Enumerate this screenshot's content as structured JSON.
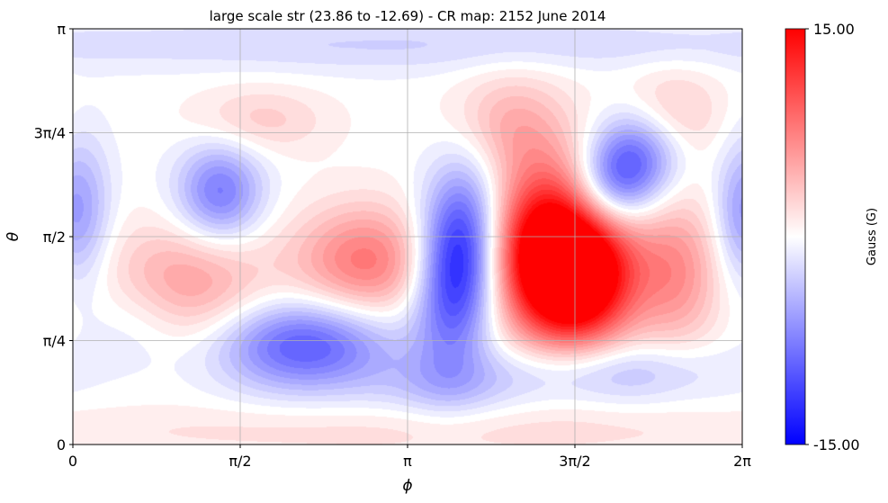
{
  "chart_data": {
    "type": "heatmap",
    "title": "large scale str (23.86 to -12.69) - CR map: 2152 June 2014",
    "xlabel": "ϕ",
    "ylabel": "θ",
    "xlim": [
      0,
      6.2832
    ],
    "ylim": [
      0,
      3.1416
    ],
    "x_ticks": [
      {
        "value": 0,
        "label": "0"
      },
      {
        "value": 1.5708,
        "label": "π/2"
      },
      {
        "value": 3.1416,
        "label": "π"
      },
      {
        "value": 4.7124,
        "label": "3π/2"
      },
      {
        "value": 6.2832,
        "label": "2π"
      }
    ],
    "y_ticks": [
      {
        "value": 0,
        "label": "0"
      },
      {
        "value": 0.7854,
        "label": "π/4"
      },
      {
        "value": 1.5708,
        "label": "π/2"
      },
      {
        "value": 2.3562,
        "label": "3π/4"
      },
      {
        "value": 3.1416,
        "label": "π"
      }
    ],
    "grid": true,
    "colormap": "bwr",
    "colorbar": {
      "label": "Gauss (G)",
      "vmin": -15.0,
      "vmax": 15.0,
      "max_label": "15.00",
      "min_label": "-15.00",
      "low_color": "#0000ff",
      "mid_color": "#ffffff",
      "high_color": "#ff0000"
    },
    "features": [
      {
        "phi": 4.6,
        "theta": 1.44,
        "amplitude": 24,
        "sx": 0.42,
        "sy": 0.44,
        "tilt": -0.55
      },
      {
        "phi": 4.75,
        "theta": 1.2,
        "amplitude": 6,
        "sx": 0.35,
        "sy": 0.3,
        "tilt": 0
      },
      {
        "phi": 3.62,
        "theta": 1.38,
        "amplitude": -15,
        "sx": 0.26,
        "sy": 0.48,
        "tilt": 0.12
      },
      {
        "phi": 5.15,
        "theta": 2.05,
        "amplitude": -13,
        "sx": 0.38,
        "sy": 0.26,
        "tilt": -0.65
      },
      {
        "phi": 2.17,
        "theta": 0.75,
        "amplitude": -10,
        "sx": 0.58,
        "sy": 0.24,
        "tilt": 0
      },
      {
        "phi": 1.38,
        "theta": 1.9,
        "amplitude": -8,
        "sx": 0.28,
        "sy": 0.26,
        "tilt": 0
      },
      {
        "phi": 0.12,
        "theta": 1.76,
        "amplitude": -4.5,
        "sx": 0.18,
        "sy": 0.4,
        "tilt": 0
      },
      {
        "phi": 2.75,
        "theta": 1.38,
        "amplitude": 8,
        "sx": 0.46,
        "sy": 0.3,
        "tilt": 0
      },
      {
        "phi": 1.05,
        "theta": 1.2,
        "amplitude": 6,
        "sx": 0.55,
        "sy": 0.32,
        "tilt": 0
      },
      {
        "phi": 5.67,
        "theta": 1.3,
        "amplitude": 6,
        "sx": 0.28,
        "sy": 0.4,
        "tilt": 0
      },
      {
        "phi": 5.6,
        "theta": 2.5,
        "amplitude": 4.5,
        "sx": 0.32,
        "sy": 0.24,
        "tilt": 0
      },
      {
        "phi": 4.1,
        "theta": 2.42,
        "amplitude": 4.5,
        "sx": 0.38,
        "sy": 0.28,
        "tilt": 0
      },
      {
        "phi": 1.75,
        "theta": 2.45,
        "amplitude": 3,
        "sx": 0.45,
        "sy": 0.18,
        "tilt": 0
      },
      {
        "phi": 5.0,
        "theta": 0.55,
        "amplitude": -4.5,
        "sx": 0.75,
        "sy": 0.17,
        "tilt": 0
      },
      {
        "phi": 3.5,
        "theta": 0.45,
        "amplitude": -3,
        "sx": 0.5,
        "sy": 0.18,
        "tilt": 0
      },
      {
        "phi": 0.6,
        "theta": 0.95,
        "amplitude": -2.5,
        "sx": 0.35,
        "sy": 0.25,
        "tilt": 0
      },
      {
        "phi": 2.8,
        "theta": 3.02,
        "amplitude": -2.5,
        "sx": 1.6,
        "sy": 0.15,
        "tilt": 0
      },
      {
        "phi": 5.8,
        "theta": 3.02,
        "amplitude": -1.5,
        "sx": 1.2,
        "sy": 0.13,
        "tilt": 0
      },
      {
        "phi": 3.14,
        "theta": 0.1,
        "amplitude": 2,
        "sx": 3.0,
        "sy": 0.15,
        "tilt": 0
      },
      {
        "phi": 6.2,
        "theta": 1.72,
        "amplitude": -3,
        "sx": 0.15,
        "sy": 0.35,
        "tilt": 0
      }
    ]
  }
}
